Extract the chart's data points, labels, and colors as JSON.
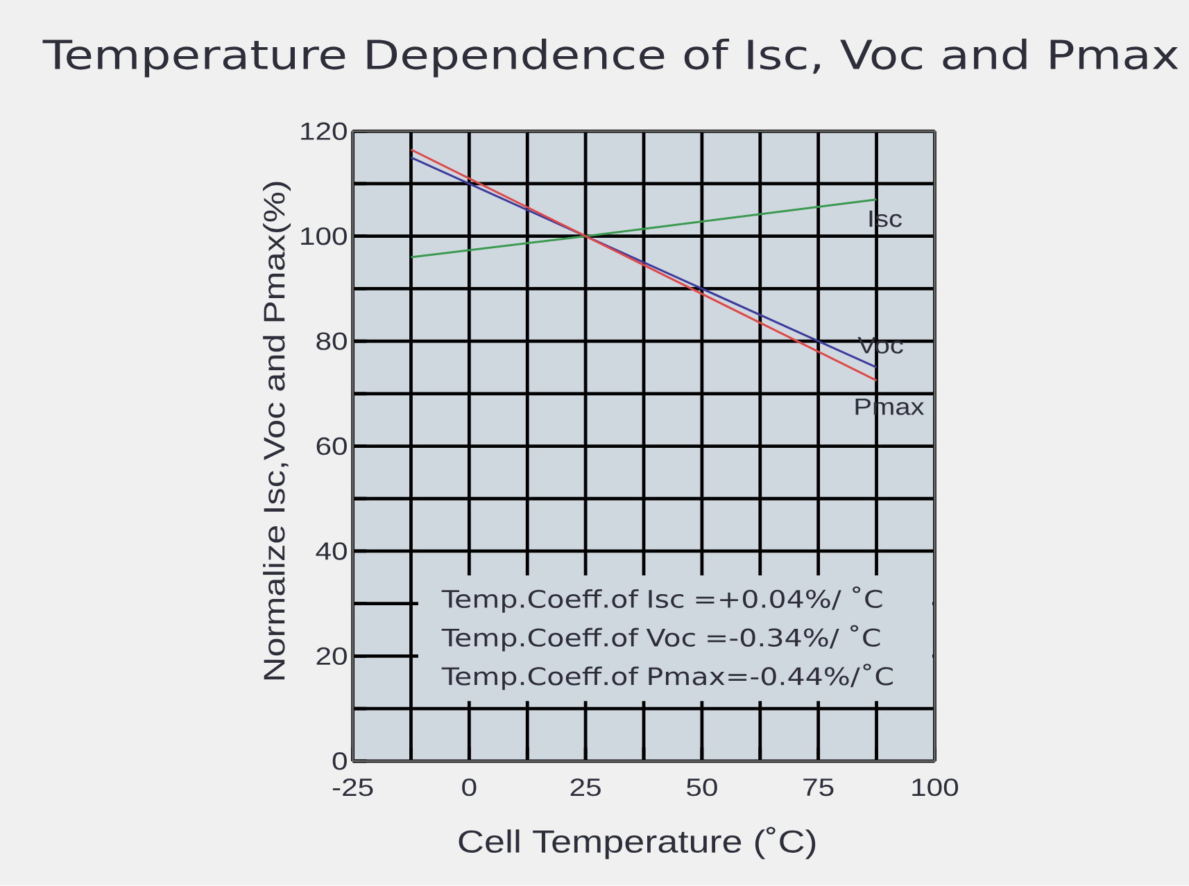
{
  "chart_data": {
    "type": "line",
    "title": "Temperature Dependence of Isc, Voc and Pmax",
    "xlabel": "Cell Temperature (˚C)",
    "ylabel": "Normalize Isc,Voc and Pmax(%)",
    "x": [
      -12.5,
      25,
      87.5
    ],
    "series": [
      {
        "name": "Isc",
        "color": "#3a9a50",
        "values": [
          96,
          100,
          107
        ]
      },
      {
        "name": "Voc",
        "color": "#3c3c9c",
        "values": [
          115,
          100,
          75
        ]
      },
      {
        "name": "Pmax",
        "color": "#e04848",
        "values": [
          116.5,
          100,
          72.5
        ]
      }
    ],
    "xlim": [
      -25,
      100
    ],
    "ylim": [
      0,
      120
    ],
    "xticks": [
      -25,
      {
        "value": -12.5,
        "label": null
      },
      0,
      {
        "value": 12.5,
        "label": null
      },
      25,
      {
        "value": 37.5,
        "label": null
      },
      50,
      {
        "value": 62.5,
        "label": null
      },
      75,
      {
        "value": 87.5,
        "label": null
      },
      100
    ],
    "yticks": [
      0,
      {
        "value": 10,
        "label": null
      },
      20,
      {
        "value": 30,
        "label": null
      },
      40,
      {
        "value": 50,
        "label": null
      },
      60,
      {
        "value": 70,
        "label": null
      },
      80,
      {
        "value": 90,
        "label": null
      },
      100,
      {
        "value": 110,
        "label": null
      },
      120
    ],
    "grid": true,
    "annotations": [
      "Temp.Coeff.of Isc =+0.04%/ ˚C",
      "Temp.Coeff.of Voc =-0.34%/ ˚C",
      "Temp.Coeff.of Pmax=-0.44%/˚C"
    ]
  }
}
